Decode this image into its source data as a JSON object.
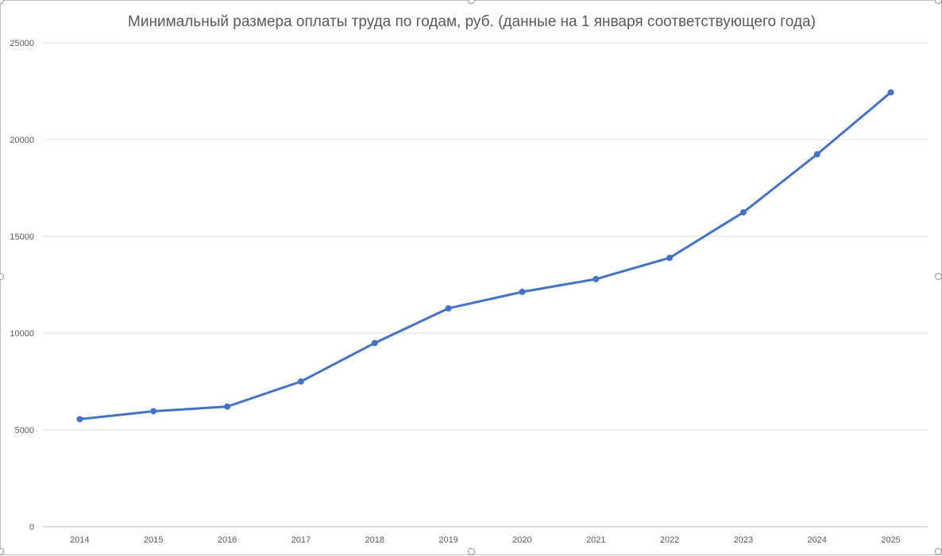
{
  "chart_data": {
    "type": "line",
    "title": "Минимальный размера оплаты труда по годам, руб. (данные на 1 января соответствующего года)",
    "xlabel": "",
    "ylabel": "",
    "categories": [
      "2014",
      "2015",
      "2016",
      "2017",
      "2018",
      "2019",
      "2020",
      "2021",
      "2022",
      "2023",
      "2024",
      "2025"
    ],
    "series": [
      {
        "values": [
          5554,
          5965,
          6204,
          7500,
          9489,
          11280,
          12130,
          12792,
          13890,
          16242,
          19242,
          22440
        ],
        "color": "#4472c4"
      }
    ],
    "ylim": [
      0,
      25000
    ],
    "yticks": [
      0,
      5000,
      10000,
      15000,
      20000,
      25000
    ],
    "grid": true,
    "legend": "none",
    "colors": {
      "line": "#4472c4",
      "grid": "#d9d9d9",
      "axis": "#bfbfbf",
      "title": "#595959",
      "tick_label": "#595959"
    }
  }
}
